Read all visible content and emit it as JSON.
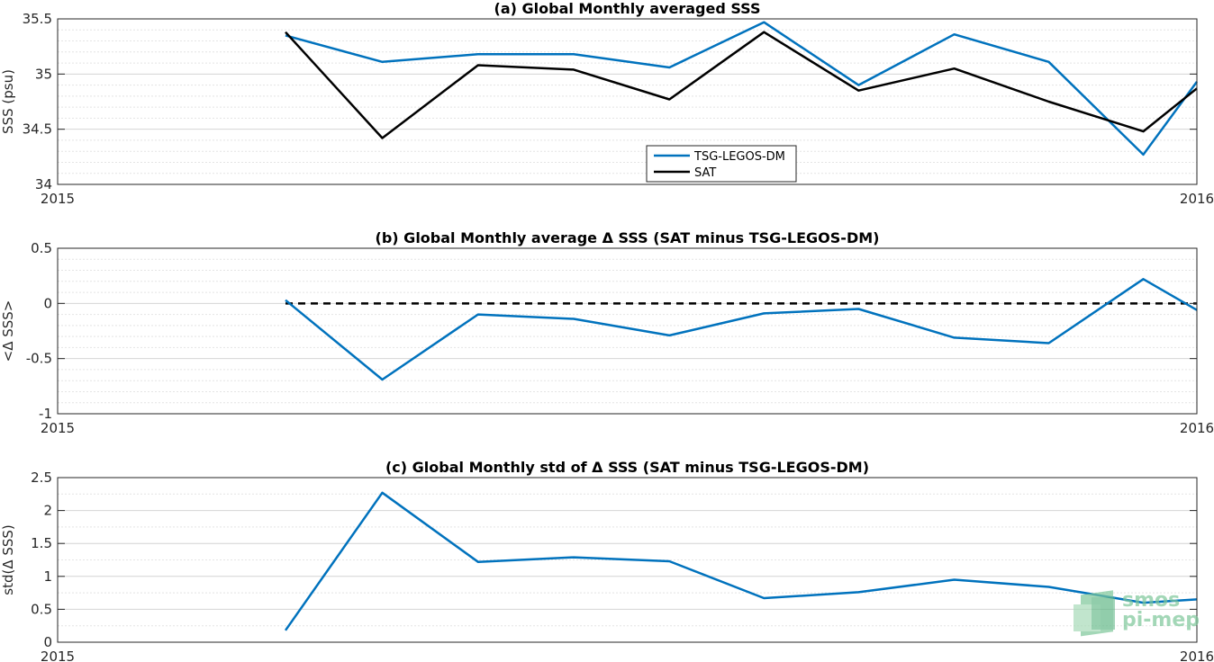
{
  "colors": {
    "tsg": "#0072BD",
    "sat": "#000000",
    "grid": "#d9d9d9",
    "axis": "#262626",
    "logo": "#7dc79a"
  },
  "logo": {
    "line1": "smos",
    "line2": "pi-mep"
  },
  "chart_data": [
    {
      "type": "line",
      "title": "(a) Global Monthly averaged SSS",
      "xlabel": "",
      "ylabel": "SSS (psu)",
      "xlim": [
        2015,
        2016
      ],
      "ylim": [
        34,
        35.5
      ],
      "xticks": [
        "2015",
        "2016"
      ],
      "yticks": [
        34,
        34.5,
        35,
        35.5
      ],
      "ytick_labels": [
        "34",
        "34.5",
        "35",
        "35.5"
      ],
      "grid": true,
      "legend": "bottom-center",
      "x": [
        2015.2,
        2015.285,
        2015.369,
        2015.453,
        2015.537,
        2015.62,
        2015.703,
        2015.787,
        2015.87,
        2015.953,
        2016.0
      ],
      "series": [
        {
          "name": "TSG-LEGOS-DM",
          "color": "#0072BD",
          "values": [
            35.35,
            35.11,
            35.18,
            35.18,
            35.06,
            35.47,
            34.9,
            35.36,
            35.11,
            34.27,
            34.93
          ]
        },
        {
          "name": "SAT",
          "color": "#000000",
          "values": [
            35.38,
            34.42,
            35.08,
            35.04,
            34.77,
            35.38,
            34.85,
            35.05,
            34.75,
            34.48,
            34.87
          ]
        }
      ]
    },
    {
      "type": "line",
      "title": "(b) Global Monthly average Δ SSS (SAT minus TSG-LEGOS-DM)",
      "xlabel": "",
      "ylabel": "<Δ SSS>",
      "xlim": [
        2015,
        2016
      ],
      "ylim": [
        -1,
        0.5
      ],
      "xticks": [
        "2015",
        "2016"
      ],
      "yticks": [
        -1,
        -0.5,
        0,
        0.5
      ],
      "ytick_labels": [
        "-1",
        "-0.5",
        "0",
        "0.5"
      ],
      "grid": true,
      "reference_line": {
        "y": 0,
        "style": "dashed",
        "x_start": 2015.2,
        "x_end": 2016.0
      },
      "x": [
        2015.2,
        2015.285,
        2015.369,
        2015.453,
        2015.537,
        2015.62,
        2015.703,
        2015.787,
        2015.87,
        2015.953,
        2016.0
      ],
      "series": [
        {
          "color": "#0072BD",
          "values": [
            0.03,
            -0.69,
            -0.1,
            -0.14,
            -0.29,
            -0.09,
            -0.05,
            -0.31,
            -0.36,
            0.22,
            -0.06
          ]
        }
      ]
    },
    {
      "type": "line",
      "title": "(c) Global Monthly std of Δ SSS (SAT minus TSG-LEGOS-DM)",
      "xlabel": "",
      "ylabel": "std(Δ SSS)",
      "xlim": [
        2015,
        2016
      ],
      "ylim": [
        0,
        2.5
      ],
      "xticks": [
        "2015",
        "2016"
      ],
      "yticks": [
        0,
        0.5,
        1,
        1.5,
        2,
        2.5
      ],
      "ytick_labels": [
        "0",
        "0.5",
        "1",
        "1.5",
        "2",
        "2.5"
      ],
      "grid": true,
      "x": [
        2015.2,
        2015.285,
        2015.369,
        2015.453,
        2015.537,
        2015.62,
        2015.703,
        2015.787,
        2015.87,
        2015.953,
        2016.0
      ],
      "series": [
        {
          "color": "#0072BD",
          "values": [
            0.18,
            2.27,
            1.22,
            1.29,
            1.23,
            0.67,
            0.76,
            0.95,
            0.84,
            0.6,
            0.65
          ]
        }
      ]
    }
  ]
}
